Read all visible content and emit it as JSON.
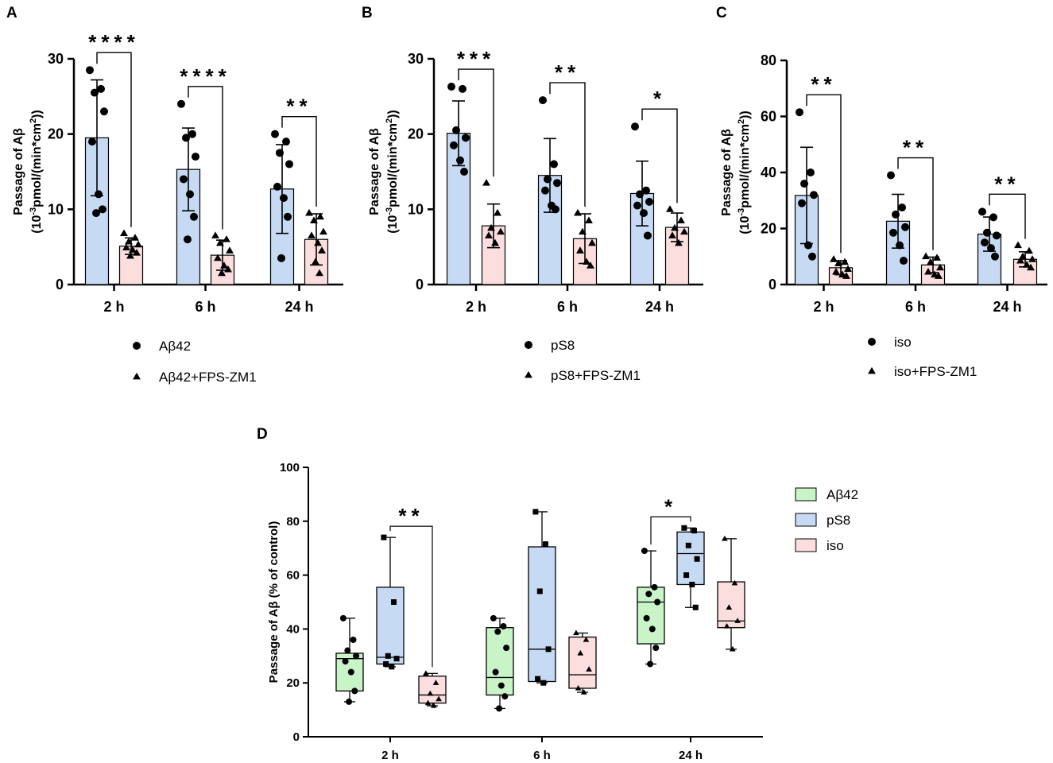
{
  "panels": [
    {
      "id": "A",
      "type": "bar",
      "ylabel_line1": "Passage of Aβ",
      "ylabel_line2_parts": [
        "(10",
        "-3",
        "pmol/(min*cm",
        "2",
        "))"
      ],
      "yticks": [
        0,
        10,
        20,
        30
      ],
      "ylim": [
        0,
        30
      ],
      "categories": [
        "2 h",
        "6 h",
        "24 h"
      ],
      "series": [
        {
          "name": "Aβ42",
          "marker": "circle",
          "fill": "#c6daf4",
          "means": [
            19.5,
            15.3,
            12.7
          ],
          "sd": [
            7.7,
            5.5,
            5.9
          ],
          "points": [
            [
              28.5,
              26.0,
              25.5,
              23.0,
              19.0,
              12.0,
              10.0,
              9.5
            ],
            [
              24.0,
              20.0,
              19.5,
              17.0,
              14.0,
              12.0,
              9.0,
              6.0
            ],
            [
              20.0,
              19.0,
              17.5,
              16.0,
              13.0,
              11.5,
              9.0,
              3.5
            ]
          ]
        },
        {
          "name": "Aβ42+FPS-ZM1",
          "marker": "triangle",
          "fill": "#fcdede",
          "means": [
            5.1,
            3.9,
            6.0
          ],
          "sd": [
            1.1,
            2.0,
            3.4
          ],
          "points": [
            [
              6.8,
              6.2,
              5.7,
              5.3,
              4.9,
              4.6,
              4.2,
              3.8
            ],
            [
              6.5,
              6.0,
              5.5,
              4.5,
              3.5,
              2.5,
              2.0,
              1.5
            ],
            [
              9.5,
              9.0,
              8.5,
              7.0,
              6.5,
              5.5,
              4.5,
              3.0,
              1.5
            ]
          ]
        }
      ],
      "significance": [
        "****",
        "****",
        "**"
      ],
      "legend": [
        "Aβ42",
        "Aβ42+FPS-ZM1"
      ]
    },
    {
      "id": "B",
      "type": "bar",
      "ylabel_line1": "Passage of Aβ",
      "ylabel_line2_parts": [
        "(10",
        "-3",
        "pmol/(min*cm",
        "2",
        "))"
      ],
      "yticks": [
        0,
        10,
        20,
        30
      ],
      "ylim": [
        0,
        30
      ],
      "categories": [
        "2 h",
        "6 h",
        "24 h"
      ],
      "series": [
        {
          "name": "pS8",
          "marker": "circle",
          "fill": "#c6daf4",
          "means": [
            20.1,
            14.5,
            12.1
          ],
          "sd": [
            4.3,
            4.9,
            4.3
          ],
          "points": [
            [
              26.3,
              26.0,
              20.5,
              19.5,
              18.5,
              16.5,
              15.0
            ],
            [
              24.5,
              16.0,
              14.0,
              13.5,
              12.5,
              10.5,
              10.0
            ],
            [
              21.0,
              12.5,
              12.0,
              11.0,
              10.5,
              9.5,
              6.5
            ]
          ]
        },
        {
          "name": "pS8+FPS-ZM1",
          "marker": "triangle",
          "fill": "#fcdede",
          "means": [
            7.8,
            6.1,
            7.6
          ],
          "sd": [
            2.9,
            3.3,
            1.9
          ],
          "points": [
            [
              13.5,
              9.5,
              7.5,
              7.0,
              6.5,
              5.5
            ],
            [
              9.5,
              8.5,
              7.0,
              5.5,
              4.5,
              3.0,
              2.5
            ],
            [
              10.0,
              8.5,
              7.5,
              7.0,
              6.5,
              5.5
            ]
          ]
        }
      ],
      "significance": [
        "***",
        "**",
        "*"
      ],
      "legend": [
        "pS8",
        "pS8+FPS-ZM1"
      ]
    },
    {
      "id": "C",
      "type": "bar",
      "ylabel_line1": "Passage of Aβ",
      "ylabel_line2_parts": [
        "(10",
        "-3",
        "pmol/(min*cm",
        "2",
        "))"
      ],
      "yticks": [
        0,
        20,
        40,
        60,
        80
      ],
      "ylim": [
        0,
        80
      ],
      "categories": [
        "2 h",
        "6 h",
        "24 h"
      ],
      "series": [
        {
          "name": "iso",
          "marker": "circle",
          "fill": "#c6daf4",
          "means": [
            31.8,
            22.6,
            18.0
          ],
          "sd": [
            17.2,
            9.6,
            6.1
          ],
          "points": [
            [
              61.5,
              40.0,
              36.0,
              32.0,
              29.0,
              14.0,
              10.0
            ],
            [
              39.0,
              27.5,
              25.0,
              20.5,
              18.5,
              14.0,
              8.5
            ],
            [
              26.0,
              24.0,
              18.5,
              17.5,
              15.0,
              13.0,
              10.0
            ]
          ]
        },
        {
          "name": "iso+FPS-ZM1",
          "marker": "triangle",
          "fill": "#fcdede",
          "means": [
            6.0,
            7.0,
            9.0
          ],
          "sd": [
            2.5,
            2.8,
            2.7
          ],
          "points": [
            [
              9.0,
              8.0,
              7.5,
              5.5,
              4.5,
              3.5,
              3.0
            ],
            [
              10.0,
              9.5,
              8.0,
              6.0,
              4.5,
              3.5,
              3.0
            ],
            [
              14.0,
              12.0,
              10.0,
              9.0,
              8.5,
              7.0,
              6.0
            ]
          ]
        }
      ],
      "significance": [
        "**",
        "**",
        "**"
      ],
      "legend": [
        "iso",
        "iso+FPS-ZM1"
      ]
    }
  ],
  "chart_data": {
    "type": "box",
    "id": "D",
    "ylabel": "Passage of Aβ (% of control)",
    "yticks": [
      0,
      20,
      40,
      60,
      80,
      100
    ],
    "ylim": [
      0,
      100
    ],
    "categories": [
      "2 h",
      "6 h",
      "24 h"
    ],
    "series": [
      {
        "name": "Aβ42",
        "marker": "circle",
        "fill": "#c8f4c8",
        "boxes": [
          {
            "min": 13.0,
            "q1": 17.0,
            "median": 29.0,
            "q3": 31.0,
            "max": 44.0,
            "points": [
              44.0,
              36.0,
              32.0,
              30.0,
              28.0,
              24.0,
              17.0,
              13.0
            ]
          },
          {
            "min": 10.5,
            "q1": 15.5,
            "median": 22.0,
            "q3": 40.5,
            "max": 44.0,
            "points": [
              44.0,
              41.0,
              39.0,
              33.0,
              24.0,
              19.0,
              15.0,
              10.5
            ]
          },
          {
            "min": 27.0,
            "q1": 34.5,
            "median": 50.0,
            "q3": 55.5,
            "max": 69.0,
            "points": [
              69.0,
              55.5,
              53.0,
              50.0,
              44.0,
              40.0,
              33.0,
              27.0
            ]
          }
        ]
      },
      {
        "name": "pS8",
        "marker": "square",
        "fill": "#c6daf4",
        "boxes": [
          {
            "min": 26.0,
            "q1": 27.0,
            "median": 29.5,
            "q3": 55.5,
            "max": 74.0,
            "points": [
              74.0,
              50.0,
              30.0,
              29.0,
              27.0,
              26.0
            ]
          },
          {
            "min": 20.0,
            "q1": 20.5,
            "median": 32.5,
            "q3": 70.5,
            "max": 83.5,
            "points": [
              83.5,
              71.5,
              54.0,
              32.5,
              21.5,
              20.0
            ]
          },
          {
            "min": 48.0,
            "q1": 56.5,
            "median": 68.0,
            "q3": 76.0,
            "max": 77.5,
            "points": [
              77.5,
              76.5,
              71.0,
              66.0,
              60.0,
              56.5,
              48.0
            ]
          }
        ]
      },
      {
        "name": "iso",
        "marker": "triangle",
        "fill": "#fcdede",
        "boxes": [
          {
            "min": 11.5,
            "q1": 12.5,
            "median": 15.5,
            "q3": 22.5,
            "max": 23.5,
            "points": [
              23.5,
              20.0,
              16.0,
              14.0,
              12.5,
              11.5
            ]
          },
          {
            "min": 16.5,
            "q1": 18.0,
            "median": 23.0,
            "q3": 37.0,
            "max": 38.5,
            "points": [
              38.5,
              36.0,
              31.0,
              25.0,
              18.0,
              16.5
            ]
          },
          {
            "min": 32.5,
            "q1": 40.5,
            "median": 43.0,
            "q3": 57.5,
            "max": 73.5,
            "points": [
              73.5,
              57.0,
              48.0,
              43.0,
              41.0,
              32.5
            ]
          }
        ]
      }
    ],
    "significance": [
      {
        "label": "**",
        "from_series": 1,
        "to_series": 2,
        "category": 0
      },
      {
        "label": "*",
        "from_series": 0,
        "to_series": 1,
        "category": 2
      }
    ],
    "legend": [
      "Aβ42",
      "pS8",
      "iso"
    ]
  }
}
